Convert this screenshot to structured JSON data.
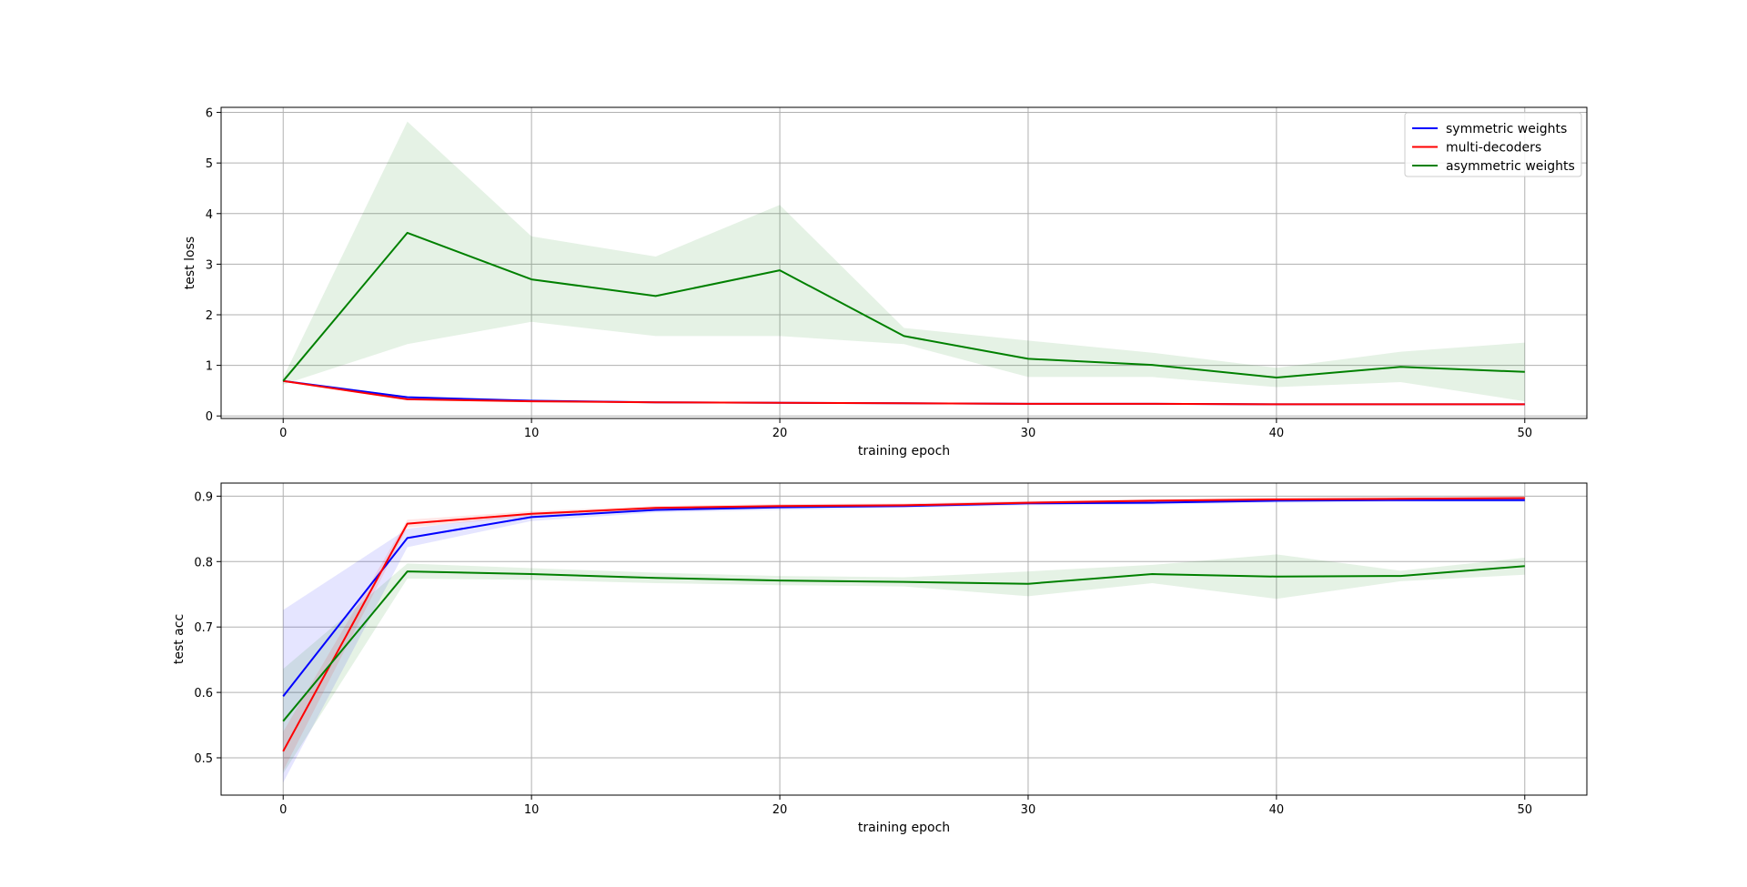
{
  "chart_data": [
    {
      "type": "line",
      "xlabel": "training epoch",
      "ylabel": "test loss",
      "xlim": [
        -2.5,
        52.5
      ],
      "ylim": [
        -0.05,
        6.1
      ],
      "xticks": [
        0,
        10,
        20,
        30,
        40,
        50
      ],
      "yticks": [
        0,
        1,
        2,
        3,
        4,
        5,
        6
      ],
      "grid": true,
      "legend": "top-right",
      "x": [
        0,
        5,
        10,
        15,
        20,
        25,
        30,
        35,
        40,
        45,
        50
      ],
      "series": [
        {
          "name": "symmetric weights",
          "color": "#0000ff",
          "values": [
            0.69,
            0.37,
            0.3,
            0.27,
            0.26,
            0.25,
            0.24,
            0.24,
            0.23,
            0.23,
            0.23
          ],
          "lower": [
            0.68,
            0.35,
            0.28,
            0.26,
            0.25,
            0.24,
            0.23,
            0.23,
            0.22,
            0.22,
            0.22
          ],
          "upper": [
            0.7,
            0.39,
            0.32,
            0.28,
            0.27,
            0.26,
            0.25,
            0.25,
            0.24,
            0.24,
            0.24
          ]
        },
        {
          "name": "multi-decoders",
          "color": "#ff0000",
          "values": [
            0.69,
            0.33,
            0.29,
            0.27,
            0.26,
            0.25,
            0.24,
            0.24,
            0.23,
            0.23,
            0.23
          ],
          "lower": [
            0.68,
            0.31,
            0.27,
            0.26,
            0.25,
            0.24,
            0.23,
            0.23,
            0.22,
            0.22,
            0.22
          ],
          "upper": [
            0.7,
            0.35,
            0.31,
            0.28,
            0.27,
            0.26,
            0.25,
            0.25,
            0.24,
            0.24,
            0.24
          ]
        },
        {
          "name": "asymmetric weights",
          "color": "#008000",
          "values": [
            0.69,
            3.62,
            2.7,
            2.37,
            2.88,
            1.58,
            1.13,
            1.01,
            0.76,
            0.97,
            0.87
          ],
          "lower": [
            0.62,
            1.42,
            1.86,
            1.58,
            1.58,
            1.42,
            0.77,
            0.77,
            0.57,
            0.67,
            0.29
          ],
          "upper": [
            0.76,
            5.82,
            3.55,
            3.15,
            4.17,
            1.74,
            1.49,
            1.25,
            0.95,
            1.27,
            1.45
          ]
        }
      ]
    },
    {
      "type": "line",
      "xlabel": "training epoch",
      "ylabel": "test acc",
      "xlim": [
        -2.5,
        52.5
      ],
      "ylim": [
        0.443,
        0.92
      ],
      "xticks": [
        0,
        10,
        20,
        30,
        40,
        50
      ],
      "yticks": [
        0.5,
        0.6,
        0.7,
        0.8,
        0.9
      ],
      "grid": true,
      "legend": "none",
      "x": [
        0,
        5,
        10,
        15,
        20,
        25,
        30,
        35,
        40,
        45,
        50
      ],
      "series": [
        {
          "name": "symmetric weights",
          "color": "#0000ff",
          "values": [
            0.594,
            0.836,
            0.868,
            0.879,
            0.883,
            0.885,
            0.889,
            0.89,
            0.893,
            0.894,
            0.894
          ],
          "lower": [
            0.462,
            0.822,
            0.862,
            0.875,
            0.879,
            0.882,
            0.886,
            0.887,
            0.89,
            0.891,
            0.891
          ],
          "upper": [
            0.726,
            0.85,
            0.874,
            0.883,
            0.887,
            0.888,
            0.892,
            0.893,
            0.896,
            0.897,
            0.897
          ]
        },
        {
          "name": "multi-decoders",
          "color": "#ff0000",
          "values": [
            0.51,
            0.858,
            0.873,
            0.882,
            0.885,
            0.886,
            0.89,
            0.893,
            0.895,
            0.896,
            0.897
          ],
          "lower": [
            0.48,
            0.852,
            0.869,
            0.879,
            0.882,
            0.883,
            0.887,
            0.89,
            0.892,
            0.893,
            0.894
          ],
          "upper": [
            0.54,
            0.864,
            0.877,
            0.885,
            0.888,
            0.889,
            0.893,
            0.896,
            0.898,
            0.899,
            0.9
          ]
        },
        {
          "name": "asymmetric weights",
          "color": "#008000",
          "values": [
            0.556,
            0.785,
            0.781,
            0.775,
            0.771,
            0.769,
            0.766,
            0.781,
            0.777,
            0.778,
            0.793
          ],
          "lower": [
            0.476,
            0.774,
            0.772,
            0.767,
            0.764,
            0.762,
            0.747,
            0.767,
            0.743,
            0.77,
            0.78
          ],
          "upper": [
            0.636,
            0.797,
            0.79,
            0.783,
            0.778,
            0.776,
            0.785,
            0.795,
            0.811,
            0.786,
            0.806
          ]
        }
      ]
    }
  ]
}
